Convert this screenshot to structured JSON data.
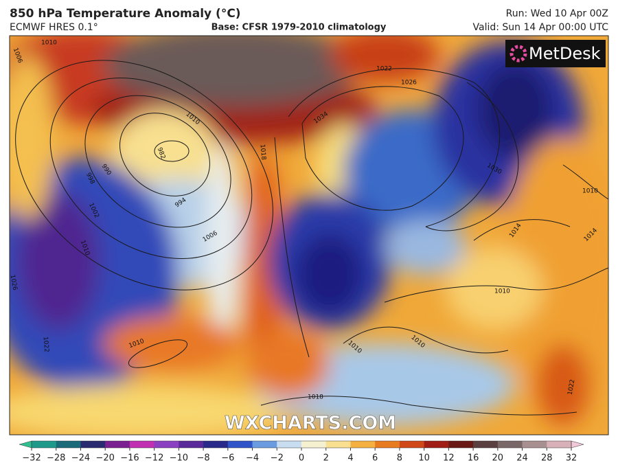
{
  "header": {
    "title": "850 hPa Temperature Anomaly (°C)",
    "model": "ECMWF HRES 0.1°",
    "base": "Base: CFSR 1979-2010 climatology",
    "run": "Run: Wed 10 Apr 00Z",
    "valid": "Valid: Sun 14 Apr 00:00 UTC"
  },
  "logo": "MetDesk",
  "watermark": "WXCHARTS.COM",
  "isobar_labels": [
    "1010",
    "1006",
    "990",
    "998",
    "1002",
    "1010",
    "1026",
    "1022",
    "982",
    "994",
    "1006",
    "1010",
    "1018",
    "1034",
    "1022",
    "1026",
    "1030",
    "1010",
    "1014",
    "1014",
    "1010",
    "1010",
    "1010",
    "1018",
    "1010",
    "1022"
  ],
  "colorbar": {
    "ticks": [
      "−32",
      "−28",
      "−24",
      "−20",
      "−16",
      "−12",
      "−10",
      "−8",
      "−6",
      "−4",
      "−2",
      "0",
      "2",
      "4",
      "6",
      "8",
      "10",
      "12",
      "16",
      "20",
      "24",
      "28",
      "32"
    ],
    "colors": [
      "#30c090",
      "#1f9a8a",
      "#1a6a7a",
      "#2a2a70",
      "#7a2090",
      "#c030b0",
      "#8a40c0",
      "#5a2a9a",
      "#2a2a8a",
      "#2f55c8",
      "#6a9ae0",
      "#c8ddf0",
      "#f4f0d0",
      "#f8e090",
      "#f4b040",
      "#e87a20",
      "#d04818",
      "#a01e14",
      "#6a1a14",
      "#5a4040",
      "#7a6868",
      "#a89090",
      "#d8b0b8",
      "#f0c8d8"
    ]
  }
}
